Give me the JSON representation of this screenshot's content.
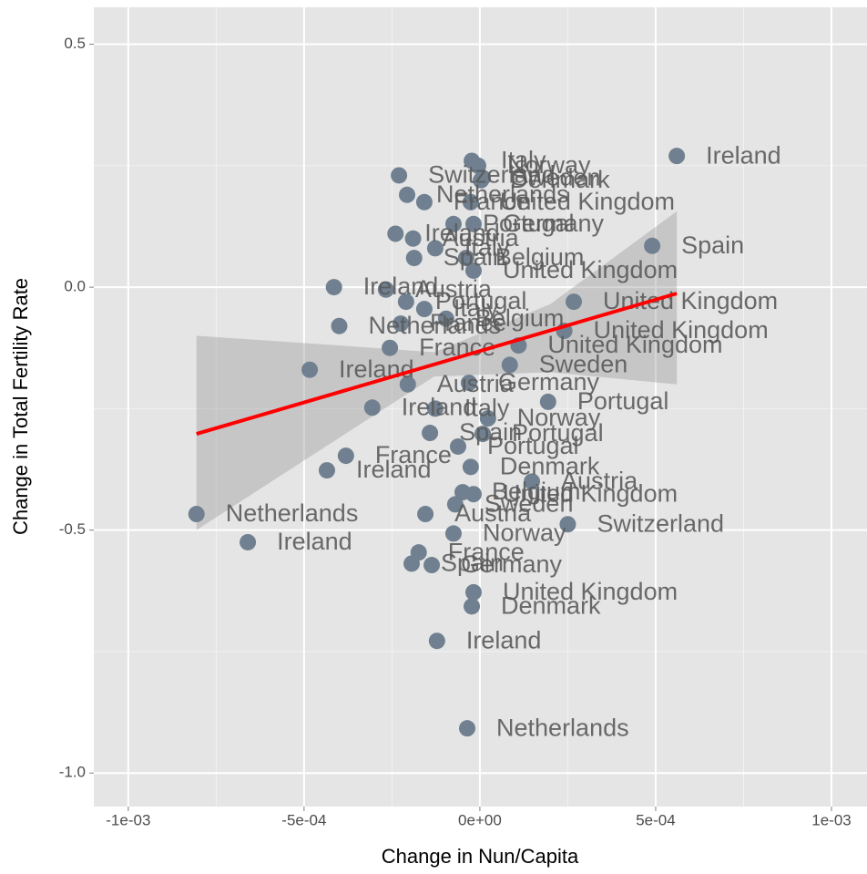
{
  "chart_data": {
    "type": "scatter",
    "x_label": "Change in Nun/Capita",
    "y_label": "Change in Total Fertility Rate",
    "xlim": [
      -0.001098,
      0.001101
    ],
    "ylim": [
      -1.069,
      0.576
    ],
    "xticks": [
      {
        "value": -0.001,
        "label": "-1e-03"
      },
      {
        "value": -0.0005,
        "label": "-5e-04"
      },
      {
        "value": 0,
        "label": "0e+00"
      },
      {
        "value": 0.0005,
        "label": "5e-04"
      },
      {
        "value": 0.001,
        "label": "1e-03"
      }
    ],
    "yticks": [
      {
        "value": -1,
        "label": "-1.0"
      },
      -0.5,
      {
        "value": 0,
        "label": "0.0"
      },
      0.5
    ],
    "grid": true,
    "minor_grid": true,
    "color": "#708090",
    "points": [
      {
        "label": "Ireland",
        "x": 0.00056,
        "y": 0.27
      },
      {
        "label": "Italy",
        "x": -2.3e-05,
        "y": 0.26
      },
      {
        "label": "Norway",
        "x": -5e-06,
        "y": 0.25
      },
      {
        "label": "Switzerland",
        "x": -0.00023,
        "y": 0.23
      },
      {
        "label": "Sweden",
        "x": 8e-06,
        "y": 0.225
      },
      {
        "label": "Denmark",
        "x": 3e-06,
        "y": 0.22
      },
      {
        "label": "Netherlands",
        "x": -0.000207,
        "y": 0.19
      },
      {
        "label": "France",
        "x": -0.000158,
        "y": 0.175
      },
      {
        "label": "United Kingdom",
        "x": -2.6e-05,
        "y": 0.175
      },
      {
        "label": "Portugal",
        "x": -7.5e-05,
        "y": 0.13
      },
      {
        "label": "Germany",
        "x": -1.8e-05,
        "y": 0.13
      },
      {
        "label": "Ireland",
        "x": -0.00024,
        "y": 0.11
      },
      {
        "label": "Austria",
        "x": -0.00019,
        "y": 0.1
      },
      {
        "label": "Italy",
        "x": -0.000127,
        "y": 0.08
      },
      {
        "label": "Spain",
        "x": -0.000187,
        "y": 0.06
      },
      {
        "label": "Belgium",
        "x": -3.9e-05,
        "y": 0.06
      },
      {
        "label": "Spain",
        "x": 0.00049,
        "y": 0.085
      },
      {
        "label": "United Kingdom",
        "x": -1.8e-05,
        "y": 0.034
      },
      {
        "label": "Ireland",
        "x": -0.000415,
        "y": 0.0
      },
      {
        "label": "Austria",
        "x": -0.000267,
        "y": -0.005
      },
      {
        "label": "Portugal",
        "x": -0.00021,
        "y": -0.03
      },
      {
        "label": "Italy",
        "x": -0.000158,
        "y": -0.045
      },
      {
        "label": "Netherlands",
        "x": -0.0004,
        "y": -0.08
      },
      {
        "label": "France",
        "x": -0.000225,
        "y": -0.075
      },
      {
        "label": "Belgium",
        "x": -9.6e-05,
        "y": -0.065
      },
      {
        "label": "United Kingdom",
        "x": 0.000267,
        "y": -0.03
      },
      {
        "label": "United Kingdom",
        "x": 0.00024,
        "y": -0.09
      },
      {
        "label": "Ireland",
        "x": -0.000484,
        "y": -0.17
      },
      {
        "label": "France",
        "x": -0.000256,
        "y": -0.125
      },
      {
        "label": "United Kingdom",
        "x": 0.00011,
        "y": -0.12
      },
      {
        "label": "Sweden",
        "x": 8.5e-05,
        "y": -0.16
      },
      {
        "label": "Austria",
        "x": -0.000205,
        "y": -0.2
      },
      {
        "label": "Germany",
        "x": -3.1e-05,
        "y": -0.197
      },
      {
        "label": "Ireland",
        "x": -0.000306,
        "y": -0.248
      },
      {
        "label": "Portugal",
        "x": 0.000194,
        "y": -0.236
      },
      {
        "label": "Italy",
        "x": -0.000127,
        "y": -0.25
      },
      {
        "label": "Norway",
        "x": 2.3e-05,
        "y": -0.27
      },
      {
        "label": "Spain",
        "x": -0.000142,
        "y": -0.3
      },
      {
        "label": "Portugal",
        "x": 8e-06,
        "y": -0.302
      },
      {
        "label": "Portugal",
        "x": -6.2e-05,
        "y": -0.328
      },
      {
        "label": "France",
        "x": -0.000381,
        "y": -0.347
      },
      {
        "label": "Ireland",
        "x": -0.000435,
        "y": -0.377
      },
      {
        "label": "Denmark",
        "x": -2.6e-05,
        "y": -0.37
      },
      {
        "label": "Austria",
        "x": 0.000148,
        "y": -0.4
      },
      {
        "label": "United Kingdom",
        "x": -1.8e-05,
        "y": -0.426
      },
      {
        "label": "Belgium",
        "x": -4.9e-05,
        "y": -0.422
      },
      {
        "label": "Netherlands",
        "x": -0.000806,
        "y": -0.467
      },
      {
        "label": "Austria",
        "x": -0.000155,
        "y": -0.467
      },
      {
        "label": "Sweden",
        "x": -7e-05,
        "y": -0.447
      },
      {
        "label": "Switzerland",
        "x": 0.00025,
        "y": -0.488
      },
      {
        "label": "Norway",
        "x": -7.5e-05,
        "y": -0.507
      },
      {
        "label": "Ireland",
        "x": -0.00066,
        "y": -0.525
      },
      {
        "label": "France",
        "x": -0.000174,
        "y": -0.546
      },
      {
        "label": "Germany",
        "x": -0.000137,
        "y": -0.572
      },
      {
        "label": "Spain",
        "x": -0.000194,
        "y": -0.569
      },
      {
        "label": "United Kingdom",
        "x": -1.8e-05,
        "y": -0.628
      },
      {
        "label": "Denmark",
        "x": -2.3e-05,
        "y": -0.657
      },
      {
        "label": "Ireland",
        "x": -0.000122,
        "y": -0.728
      },
      {
        "label": "Netherlands",
        "x": -3.6e-05,
        "y": -0.908
      }
    ],
    "trend": {
      "color": "#ff0000",
      "x": [
        -0.000806,
        0.00056
      ],
      "y": [
        -0.302,
        -0.013
      ]
    },
    "band": {
      "color": "#999999",
      "x": [
        -0.000806,
        -0.0004,
        -0.00013,
        0.0002,
        0.00056
      ],
      "upper": [
        -0.1,
        -0.12,
        -0.134,
        -0.035,
        0.156
      ],
      "lower": [
        -0.5,
        -0.31,
        -0.184,
        -0.175,
        -0.2
      ]
    }
  }
}
